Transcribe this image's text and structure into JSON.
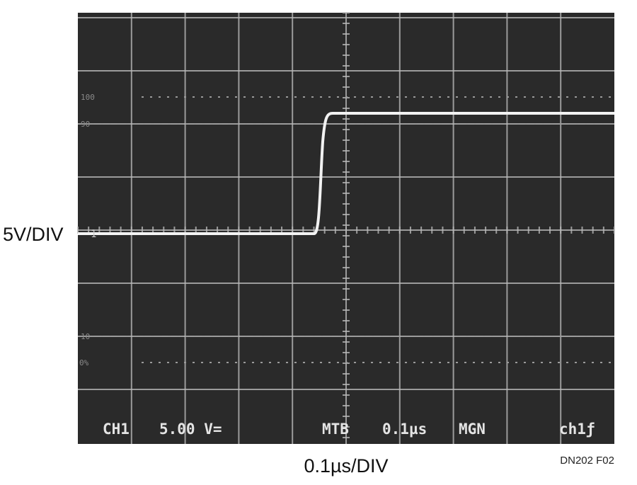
{
  "scope": {
    "vertical_scale": "5V/DIV",
    "horizontal_scale": "0.1µs/DIV",
    "figure_id": "DN202 F02",
    "screen_readout": [
      "CH1",
      "5.00 V=",
      "MTB",
      "0.1µs",
      "MGN",
      "ch1ƒ"
    ],
    "level_markers": [
      "100",
      "90",
      "10",
      "0%"
    ],
    "channel_marker": "1"
  }
}
